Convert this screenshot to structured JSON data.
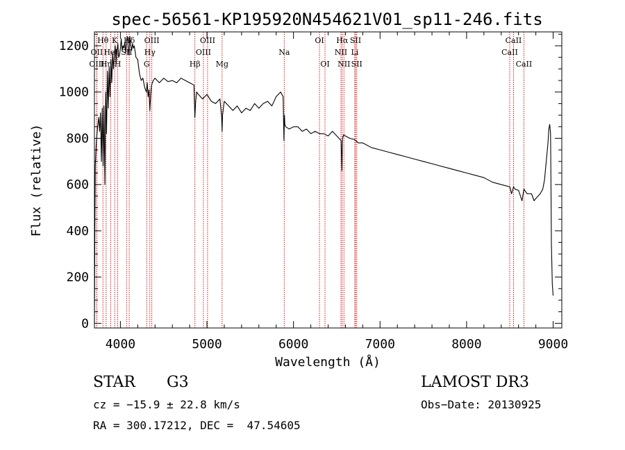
{
  "chart_data": {
    "type": "line",
    "title": "spec-56561-KP195920N454621V01_sp11-246.fits",
    "xlabel": "Wavelength (Å)",
    "ylabel": "Flux (relative)",
    "xlim": [
      3700,
      9100
    ],
    "ylim": [
      -20,
      1260
    ],
    "xticks": [
      4000,
      5000,
      6000,
      7000,
      8000,
      9000
    ],
    "yticks": [
      0,
      200,
      400,
      600,
      800,
      1000,
      1200
    ],
    "line_color": "#cc0000",
    "series": [
      {
        "name": "flux",
        "x": [
          3700,
          3705,
          3710,
          3720,
          3730,
          3740,
          3750,
          3760,
          3770,
          3780,
          3790,
          3800,
          3810,
          3820,
          3830,
          3840,
          3850,
          3860,
          3870,
          3880,
          3890,
          3900,
          3910,
          3920,
          3930,
          3940,
          3950,
          3960,
          3970,
          3980,
          3990,
          4000,
          4010,
          4020,
          4030,
          4040,
          4050,
          4060,
          4070,
          4080,
          4090,
          4100,
          4110,
          4120,
          4130,
          4140,
          4150,
          4160,
          4180,
          4200,
          4220,
          4240,
          4260,
          4280,
          4300,
          4310,
          4320,
          4330,
          4340,
          4350,
          4360,
          4380,
          4400,
          4450,
          4500,
          4550,
          4600,
          4650,
          4700,
          4750,
          4800,
          4850,
          4860,
          4870,
          4880,
          4900,
          4950,
          5000,
          5050,
          5100,
          5150,
          5170,
          5175,
          5180,
          5200,
          5250,
          5300,
          5350,
          5400,
          5450,
          5500,
          5550,
          5600,
          5650,
          5700,
          5750,
          5800,
          5850,
          5880,
          5890,
          5895,
          5900,
          5910,
          5950,
          6000,
          6050,
          6100,
          6150,
          6200,
          6250,
          6300,
          6350,
          6400,
          6450,
          6500,
          6550,
          6560,
          6563,
          6566,
          6580,
          6600,
          6650,
          6700,
          6750,
          6800,
          6900,
          7000,
          7100,
          7200,
          7300,
          7400,
          7500,
          7600,
          7700,
          7800,
          7900,
          8000,
          8100,
          8200,
          8300,
          8400,
          8450,
          8500,
          8520,
          8542,
          8560,
          8600,
          8640,
          8662,
          8680,
          8700,
          8750,
          8780,
          8800,
          8850,
          8880,
          8900,
          8920,
          8940,
          8950,
          8960,
          8970,
          8975,
          8980,
          8990,
          9000
        ],
        "y": [
          0,
          410,
          680,
          770,
          820,
          860,
          890,
          830,
          910,
          700,
          930,
          680,
          940,
          600,
          1000,
          820,
          1090,
          930,
          1110,
          980,
          1140,
          1040,
          1170,
          1100,
          1160,
          1200,
          1120,
          1180,
          1210,
          1150,
          1160,
          1190,
          1230,
          1180,
          1200,
          1190,
          1215,
          1170,
          1220,
          1240,
          1190,
          1160,
          1240,
          1200,
          1180,
          1210,
          1190,
          1200,
          1150,
          1140,
          1080,
          1050,
          1060,
          1020,
          1000,
          1040,
          980,
          1010,
          920,
          990,
          1030,
          1050,
          1060,
          1040,
          1060,
          1045,
          1050,
          1040,
          1060,
          1050,
          1040,
          1030,
          890,
          960,
          1000,
          990,
          970,
          990,
          960,
          950,
          970,
          890,
          830,
          900,
          960,
          940,
          920,
          940,
          910,
          930,
          920,
          950,
          930,
          950,
          960,
          940,
          980,
          1000,
          980,
          790,
          900,
          860,
          850,
          840,
          850,
          850,
          830,
          840,
          820,
          830,
          820,
          820,
          810,
          830,
          810,
          790,
          660,
          740,
          800,
          815,
          810,
          800,
          795,
          780,
          780,
          760,
          750,
          740,
          730,
          720,
          710,
          700,
          690,
          680,
          670,
          660,
          650,
          640,
          630,
          610,
          600,
          595,
          590,
          560,
          590,
          580,
          575,
          530,
          580,
          570,
          560,
          560,
          530,
          540,
          560,
          580,
          620,
          700,
          780,
          840,
          860,
          820,
          600,
          350,
          170,
          120
        ]
      }
    ],
    "lines": [
      {
        "name": "Hθ",
        "wavelength": 3798,
        "row": 1
      },
      {
        "name": "OII",
        "wavelength": 3727,
        "row": 2
      },
      {
        "name": "OIII",
        "wavelength": 3727,
        "row": 3
      },
      {
        "name": "Hη",
        "wavelength": 3835,
        "row": 3
      },
      {
        "name": "HeI",
        "wavelength": 3889,
        "row": 2
      },
      {
        "name": "K",
        "wavelength": 3934,
        "row": 1
      },
      {
        "name": "H",
        "wavelength": 3969,
        "row": 3
      },
      {
        "name": "Hδ",
        "wavelength": 4102,
        "row": 1
      },
      {
        "name": "SII",
        "wavelength": 4072,
        "row": 2
      },
      {
        "name": "OIII",
        "wavelength": 4363,
        "row": 1
      },
      {
        "name": "Hγ",
        "wavelength": 4340,
        "row": 2
      },
      {
        "name": "G",
        "wavelength": 4304,
        "row": 3
      },
      {
        "name": "Hβ",
        "wavelength": 4861,
        "row": 3
      },
      {
        "name": "OIII",
        "wavelength": 5007,
        "row": 1
      },
      {
        "name": "OIII",
        "wavelength": 4959,
        "row": 2
      },
      {
        "name": "Mg",
        "wavelength": 5175,
        "row": 3
      },
      {
        "name": "Na",
        "wavelength": 5893,
        "row": 2
      },
      {
        "name": "OI",
        "wavelength": 6300,
        "row": 1
      },
      {
        "name": "OI",
        "wavelength": 6364,
        "row": 3
      },
      {
        "name": "Hα",
        "wavelength": 6563,
        "row": 1
      },
      {
        "name": "NII",
        "wavelength": 6548,
        "row": 2
      },
      {
        "name": "NII",
        "wavelength": 6583,
        "row": 3
      },
      {
        "name": "SII",
        "wavelength": 6717,
        "row": 1
      },
      {
        "name": "Li",
        "wavelength": 6708,
        "row": 2
      },
      {
        "name": "SII",
        "wavelength": 6731,
        "row": 3
      },
      {
        "name": "CaII",
        "wavelength": 8542,
        "row": 1
      },
      {
        "name": "CaII",
        "wavelength": 8498,
        "row": 2
      },
      {
        "name": "CaII",
        "wavelength": 8662,
        "row": 3
      }
    ]
  },
  "info": {
    "object_class": "STAR",
    "subclass": "G3",
    "survey": "LAMOST DR3",
    "cz": "cz = −15.9 ± 22.8 km/s",
    "obs_date": "Obs−Date: 20130925",
    "coords": "RA = 300.17212, DEC =  47.54605"
  }
}
